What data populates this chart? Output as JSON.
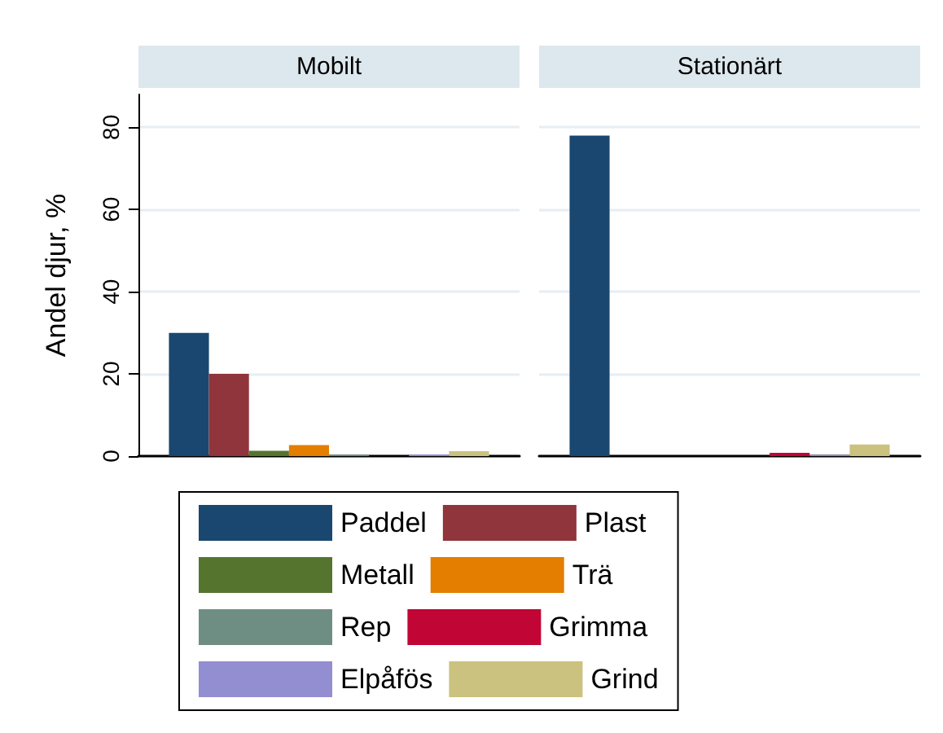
{
  "chart_data": {
    "type": "bar",
    "ylabel": "Andel djur, %",
    "categories": [
      "Mobilt",
      "Stationärt"
    ],
    "ylim": [
      0,
      88
    ],
    "yticks": [
      0,
      20,
      40,
      60,
      80
    ],
    "grid": "y",
    "legend": "bottom",
    "series": [
      {
        "name": "Paddel",
        "color": "#1a476f",
        "values": [
          30,
          78
        ]
      },
      {
        "name": "Plast",
        "color": "#90353b",
        "values": [
          20,
          0
        ]
      },
      {
        "name": "Metall",
        "color": "#55752f",
        "values": [
          1.3,
          0
        ]
      },
      {
        "name": "Trä",
        "color": "#e37e00",
        "values": [
          2.7,
          0
        ]
      },
      {
        "name": "Rep",
        "color": "#6e8e84",
        "values": [
          0.4,
          0
        ]
      },
      {
        "name": "Grimma",
        "color": "#c10534",
        "values": [
          0,
          0.8
        ]
      },
      {
        "name": "Elpåfös",
        "color": "#938dd2",
        "values": [
          0.4,
          0.3
        ]
      },
      {
        "name": "Grind",
        "color": "#cac27e",
        "values": [
          1.2,
          2.8
        ]
      }
    ]
  }
}
